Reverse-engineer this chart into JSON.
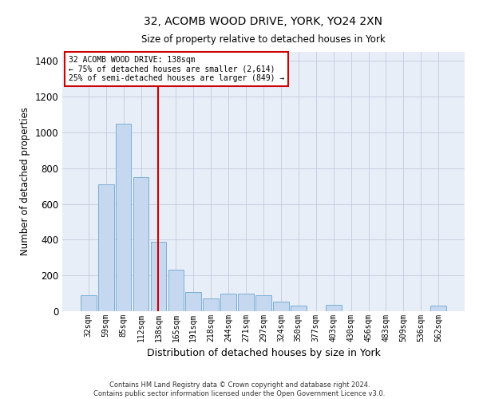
{
  "title_line1": "32, ACOMB WOOD DRIVE, YORK, YO24 2XN",
  "title_line2": "Size of property relative to detached houses in York",
  "xlabel": "Distribution of detached houses by size in York",
  "ylabel": "Number of detached properties",
  "bar_color": "#c5d8f0",
  "bar_edge_color": "#7bafd4",
  "grid_color": "#c8d0e0",
  "bg_color": "#e8eef8",
  "vline_color": "#cc0000",
  "vline_x_index": 4,
  "annotation_box_color": "#cc0000",
  "annotation_text_line1": "32 ACOMB WOOD DRIVE: 138sqm",
  "annotation_text_line2": "← 75% of detached houses are smaller (2,614)",
  "annotation_text_line3": "25% of semi-detached houses are larger (849) →",
  "categories": [
    "32sqm",
    "59sqm",
    "85sqm",
    "112sqm",
    "138sqm",
    "165sqm",
    "191sqm",
    "218sqm",
    "244sqm",
    "271sqm",
    "297sqm",
    "324sqm",
    "350sqm",
    "377sqm",
    "403sqm",
    "430sqm",
    "456sqm",
    "483sqm",
    "509sqm",
    "536sqm",
    "562sqm"
  ],
  "bar_heights": [
    90,
    710,
    1050,
    750,
    390,
    230,
    105,
    70,
    100,
    100,
    90,
    55,
    30,
    0,
    35,
    0,
    0,
    0,
    0,
    0,
    30
  ],
  "ylim": [
    0,
    1450
  ],
  "yticks": [
    0,
    200,
    400,
    600,
    800,
    1000,
    1200,
    1400
  ],
  "footnote_line1": "Contains HM Land Registry data © Crown copyright and database right 2024.",
  "footnote_line2": "Contains public sector information licensed under the Open Government Licence v3.0."
}
